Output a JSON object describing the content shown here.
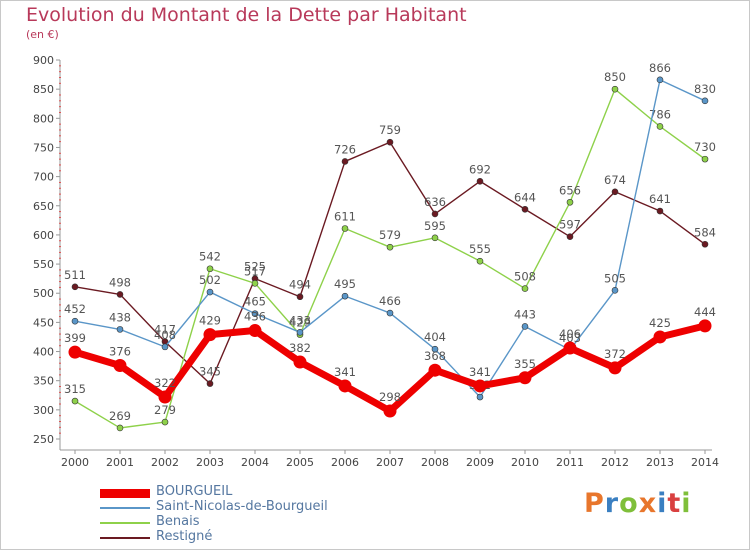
{
  "title": "Evolution du Montant de la Dette par Habitant",
  "unit_label": "(en €)",
  "logo": {
    "text": "Proxiti",
    "colors": [
      "#e8762c",
      "#3a7fc1",
      "#7fbf3a",
      "#e8762c",
      "#3a7fc1",
      "#d94040",
      "#7fbf3a"
    ]
  },
  "chart_data": {
    "type": "line",
    "x": [
      "2000",
      "2001",
      "2002",
      "2003",
      "2004",
      "2005",
      "2006",
      "2007",
      "2008",
      "2009",
      "2010",
      "2011",
      "2012",
      "2013",
      "2014"
    ],
    "ylim": [
      250,
      900
    ],
    "yticks": [
      250,
      300,
      350,
      400,
      450,
      500,
      550,
      600,
      650,
      700,
      750,
      800,
      850,
      900
    ],
    "grid": false,
    "legend_position": "bottom-left",
    "series": [
      {
        "name": "Restigné",
        "color": "#6b1a22",
        "values": [
          511,
          498,
          417,
          345,
          525,
          494,
          726,
          759,
          636,
          692,
          644,
          597,
          674,
          641,
          584
        ]
      },
      {
        "name": "Benais",
        "color": "#8ed14a",
        "values": [
          315,
          269,
          279,
          542,
          517,
          429,
          611,
          579,
          595,
          555,
          508,
          656,
          850,
          786,
          730
        ]
      },
      {
        "name": "Saint-Nicolas-de-Bourgueil",
        "color": "#5a96c8",
        "values": [
          452,
          438,
          408,
          502,
          465,
          433,
          495,
          466,
          404,
          322,
          443,
          403,
          505,
          866,
          830
        ]
      },
      {
        "name": "BOURGUEIL",
        "color": "#ee0000",
        "values": [
          399,
          376,
          322,
          429,
          436,
          382,
          341,
          298,
          368,
          341,
          355,
          406,
          372,
          425,
          444
        ]
      }
    ]
  },
  "legend": [
    {
      "name": "BOURGUEIL",
      "color": "#ee0000"
    },
    {
      "name": "Saint-Nicolas-de-Bourgueil",
      "color": "#5a96c8"
    },
    {
      "name": "Benais",
      "color": "#8ed14a"
    },
    {
      "name": "Restigné",
      "color": "#6b1a22"
    }
  ]
}
